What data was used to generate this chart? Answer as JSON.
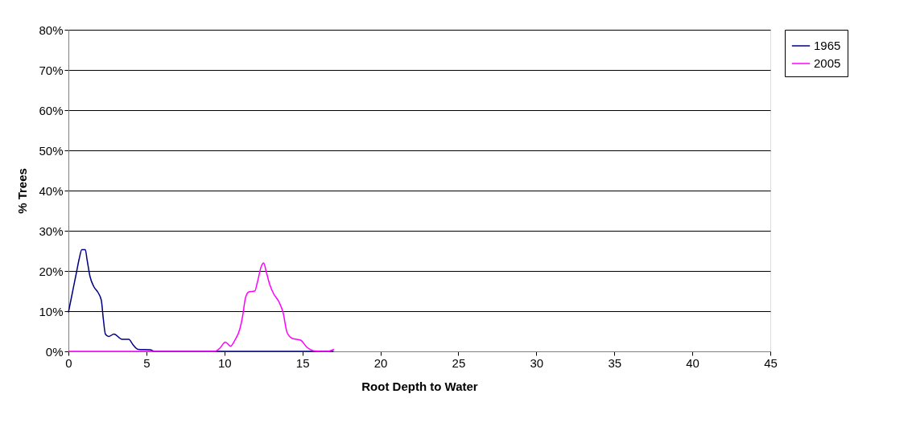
{
  "chart_data": {
    "type": "line",
    "xlabel": "Root Depth to Water",
    "ylabel": "% Trees",
    "series": [
      {
        "name": "1965",
        "color": "#000080",
        "x": [
          0,
          0.26,
          0.52,
          0.69,
          0.86,
          1.08,
          1.2,
          1.38,
          1.63,
          1.89,
          2.11,
          2.24,
          2.37,
          2.58,
          2.92,
          3.44,
          3.87,
          4.13,
          4.47,
          5.25,
          5.5,
          17
        ],
        "values": [
          9.7,
          14.7,
          19.7,
          23,
          25.3,
          25.3,
          22.7,
          18.7,
          16.1,
          14.7,
          12.7,
          8,
          4.3,
          3.7,
          4.3,
          3,
          3,
          1.7,
          0.5,
          0.4,
          0,
          0
        ]
      },
      {
        "name": "2005",
        "color": "#ff00ff",
        "x": [
          0,
          9.37,
          9.71,
          10.06,
          10.4,
          10.66,
          11.0,
          11.18,
          11.35,
          11.57,
          11.95,
          12.12,
          12.38,
          12.52,
          12.67,
          12.9,
          13.16,
          13.5,
          13.76,
          14.02,
          14.36,
          14.88,
          15.3,
          15.82,
          16.6,
          17.03
        ],
        "values": [
          0,
          0,
          0.8,
          2.3,
          1.3,
          2.7,
          5.7,
          9,
          13.3,
          14.8,
          15,
          17.3,
          21.3,
          22,
          20,
          16.7,
          14.3,
          12.3,
          9.7,
          4.7,
          3.2,
          2.8,
          1,
          0.1,
          0,
          0.5
        ]
      }
    ],
    "xlim": [
      0,
      45
    ],
    "xticks": [
      0,
      5,
      10,
      15,
      20,
      25,
      30,
      35,
      40,
      45
    ],
    "ylim": [
      0,
      80
    ],
    "yticks": [
      {
        "value": 0,
        "label": "0%"
      },
      {
        "value": 10,
        "label": "10%"
      },
      {
        "value": 20,
        "label": "20%"
      },
      {
        "value": 30,
        "label": "30%"
      },
      {
        "value": 40,
        "label": "40%"
      },
      {
        "value": 50,
        "label": "50%"
      },
      {
        "value": 60,
        "label": "60%"
      },
      {
        "value": 70,
        "label": "70%"
      },
      {
        "value": 80,
        "label": "80%"
      }
    ],
    "grid": "y",
    "legend": "right",
    "marker": "none",
    "line_style": "solid"
  }
}
